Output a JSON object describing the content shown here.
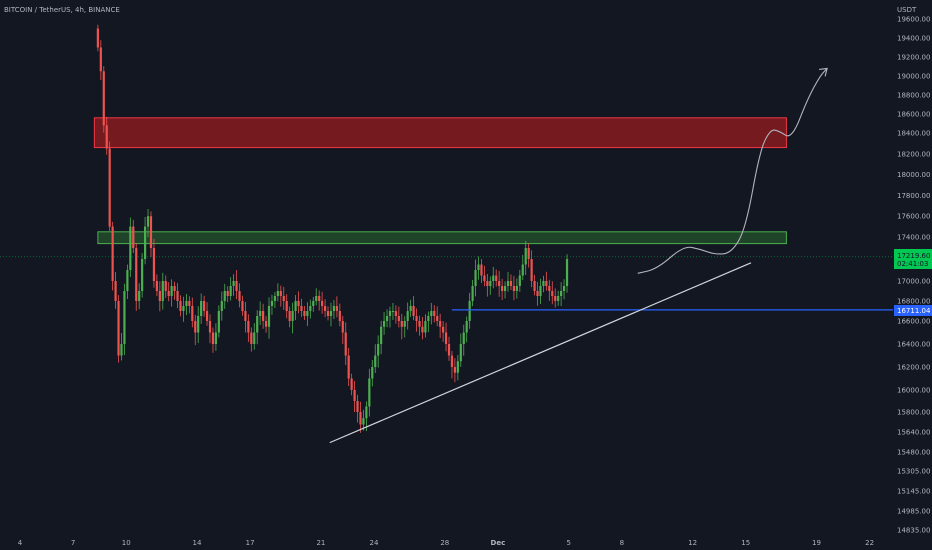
{
  "header": {
    "symbol": "BITCOIN / TetherUS",
    "interval": "4h",
    "exchange": "BINANCE",
    "sep1": ", ",
    "sep2": ", "
  },
  "axis": {
    "currency": "USDT",
    "y_ticks": [
      {
        "label": "19600.00",
        "value": 19600
      },
      {
        "label": "19400.00",
        "value": 19400
      },
      {
        "label": "19200.00",
        "value": 19200
      },
      {
        "label": "19000.00",
        "value": 19000
      },
      {
        "label": "18800.00",
        "value": 18800
      },
      {
        "label": "18600.00",
        "value": 18600
      },
      {
        "label": "18400.00",
        "value": 18400
      },
      {
        "label": "18200.00",
        "value": 18200
      },
      {
        "label": "18000.00",
        "value": 18000
      },
      {
        "label": "17800.00",
        "value": 17800
      },
      {
        "label": "17600.00",
        "value": 17600
      },
      {
        "label": "17400.00",
        "value": 17400
      },
      {
        "label": "17000.00",
        "value": 17000
      },
      {
        "label": "16800.00",
        "value": 16800
      },
      {
        "label": "16600.00",
        "value": 16600
      },
      {
        "label": "16400.00",
        "value": 16400
      },
      {
        "label": "16200.00",
        "value": 16200
      },
      {
        "label": "16000.00",
        "value": 16000
      },
      {
        "label": "15800.00",
        "value": 15800
      },
      {
        "label": "15640.00",
        "value": 15640
      },
      {
        "label": "15480.00",
        "value": 15480
      },
      {
        "label": "15305.00",
        "value": 15305
      },
      {
        "label": "15145.00",
        "value": 15145
      },
      {
        "label": "14985.00",
        "value": 14985
      },
      {
        "label": "14835.00",
        "value": 14835
      }
    ],
    "x_ticks": [
      {
        "label": "4",
        "day": 4
      },
      {
        "label": "7",
        "day": 7
      },
      {
        "label": "10",
        "day": 10
      },
      {
        "label": "14",
        "day": 14
      },
      {
        "label": "17",
        "day": 17
      },
      {
        "label": "21",
        "day": 21
      },
      {
        "label": "24",
        "day": 24
      },
      {
        "label": "28",
        "day": 28
      },
      {
        "label": "Dec",
        "day": 31
      },
      {
        "label": "5",
        "day": 35
      },
      {
        "label": "8",
        "day": 38
      },
      {
        "label": "12",
        "day": 42
      },
      {
        "label": "15",
        "day": 45
      },
      {
        "label": "19",
        "day": 49
      },
      {
        "label": "22",
        "day": 52
      }
    ]
  },
  "price_badge": {
    "price": "17219.60",
    "countdown": "02:41:03",
    "color": "#00c853"
  },
  "level_badge": {
    "price": "16711.04",
    "color": "#2962ff"
  },
  "colors": {
    "background": "#131722",
    "up": "#26a69a",
    "up_alt": "#4caf50",
    "down": "#ef5350",
    "resistance_zone": "#b71c1c",
    "support_zone": "#2e7d32",
    "level_line": "#2962ff",
    "trend_line": "#d1d4dc"
  },
  "chart_data": {
    "type": "candlestick",
    "title": "",
    "xlabel": "",
    "ylabel": "USDT",
    "ylim": [
      14835,
      19700
    ],
    "x_unit": "day of Nov 2022 (Dec 1 = 31)",
    "zones": [
      {
        "name": "resistance",
        "y_from": 18260,
        "y_to": 18560,
        "x_from": 8.2,
        "x_to": 47.3
      },
      {
        "name": "support",
        "y_from": 17340,
        "y_to": 17450,
        "x_from": 8.4,
        "x_to": 47.3
      }
    ],
    "horizontal_level": {
      "value": 16711.04,
      "x_from": 28.4
    },
    "current_price": 17219.6,
    "trend_line": {
      "from": [
        21.5,
        15555
      ],
      "to": [
        45.3,
        17165
      ]
    },
    "projection_path": [
      [
        38.9,
        17070
      ],
      [
        40.0,
        17110
      ],
      [
        41.5,
        17320
      ],
      [
        42.4,
        17290
      ],
      [
        43.3,
        17240
      ],
      [
        44.2,
        17255
      ],
      [
        45.0,
        17480
      ],
      [
        45.8,
        18230
      ],
      [
        46.4,
        18440
      ],
      [
        46.9,
        18420
      ],
      [
        47.6,
        18340
      ],
      [
        48.5,
        18760
      ],
      [
        49.2,
        19000
      ],
      [
        49.6,
        19080
      ]
    ],
    "candles_approx": {
      "start_day": 8.4,
      "step_days": 0.1667,
      "close": [
        19300,
        19050,
        18480,
        18250,
        17500,
        17000,
        16800,
        16300,
        16400,
        16900,
        17100,
        17500,
        17300,
        16800,
        16900,
        17200,
        17500,
        17600,
        17300,
        17000,
        16900,
        16800,
        17000,
        16900,
        16850,
        16950,
        16900,
        16800,
        16700,
        16750,
        16800,
        16750,
        16600,
        16500,
        16650,
        16800,
        16700,
        16600,
        16500,
        16400,
        16500,
        16700,
        16800,
        16900,
        16850,
        16950,
        17000,
        16900,
        16800,
        16700,
        16600,
        16500,
        16400,
        16500,
        16650,
        16700,
        16600,
        16550,
        16750,
        16800,
        16850,
        16900,
        16850,
        16800,
        16700,
        16600,
        16700,
        16800,
        16750,
        16700,
        16650,
        16700,
        16750,
        16800,
        16850,
        16800,
        16750,
        16700,
        16650,
        16700,
        16750,
        16700,
        16600,
        16500,
        16300,
        16100,
        16000,
        15900,
        15800,
        15700,
        15750,
        15850,
        16100,
        16200,
        16300,
        16400,
        16550,
        16600,
        16650,
        16700,
        16700,
        16650,
        16600,
        16550,
        16600,
        16700,
        16750,
        16650,
        16600,
        16550,
        16500,
        16600,
        16650,
        16700,
        16650,
        16600,
        16550,
        16500,
        16400,
        16300,
        16200,
        16150,
        16250,
        16400,
        16500,
        16600,
        16800,
        16950,
        17100,
        17150,
        17050,
        17000,
        16950,
        17000,
        17050,
        17000,
        16950,
        16900,
        16950,
        17000,
        16950,
        16900,
        16950,
        17050,
        17150,
        17300,
        17200,
        17000,
        16900,
        16850,
        16950,
        17000,
        16950,
        16900,
        16850,
        16800,
        16850,
        16900,
        16950,
        17200
      ],
      "note": "approximate reading of price action"
    }
  }
}
